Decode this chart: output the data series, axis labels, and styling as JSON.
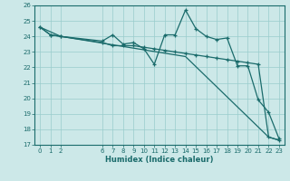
{
  "xlabel": "Humidex (Indice chaleur)",
  "xlim": [
    -0.5,
    23.5
  ],
  "ylim": [
    17,
    26
  ],
  "yticks": [
    17,
    18,
    19,
    20,
    21,
    22,
    23,
    24,
    25,
    26
  ],
  "xtick_positions": [
    0,
    1,
    2,
    6,
    7,
    8,
    9,
    10,
    11,
    12,
    13,
    14,
    15,
    16,
    17,
    18,
    19,
    20,
    21,
    22,
    23
  ],
  "xtick_labels": [
    "0",
    "1",
    "2",
    "6",
    "7",
    "8",
    "9",
    "10",
    "11",
    "12",
    "13",
    "14",
    "15",
    "16",
    "17",
    "18",
    "19",
    "20",
    "21",
    "22",
    "23"
  ],
  "bg_color": "#cce8e8",
  "grid_color": "#99cccc",
  "line_color": "#1a6b6b",
  "line1_x": [
    0,
    1,
    2,
    6,
    7,
    8,
    9,
    10,
    11,
    12,
    13,
    14,
    15,
    16,
    17,
    18,
    19,
    20,
    21,
    22,
    23
  ],
  "line1_y": [
    24.6,
    24.1,
    24.0,
    23.7,
    24.1,
    23.5,
    23.6,
    23.2,
    22.2,
    24.1,
    24.1,
    25.7,
    24.5,
    24.0,
    23.8,
    23.9,
    22.1,
    22.1,
    19.9,
    19.1,
    17.4
  ],
  "line2_x": [
    0,
    1,
    2,
    6,
    7,
    8,
    9,
    10,
    11,
    12,
    13,
    14,
    15,
    16,
    17,
    18,
    19,
    20,
    21,
    22,
    23
  ],
  "line2_y": [
    24.6,
    24.1,
    24.0,
    23.6,
    23.4,
    23.4,
    23.4,
    23.3,
    23.2,
    23.1,
    23.0,
    22.9,
    22.8,
    22.7,
    22.6,
    22.5,
    22.4,
    22.3,
    22.2,
    17.5,
    17.3
  ],
  "line3_x": [
    0,
    2,
    14,
    22,
    23
  ],
  "line3_y": [
    24.6,
    24.0,
    22.7,
    17.5,
    17.3
  ]
}
